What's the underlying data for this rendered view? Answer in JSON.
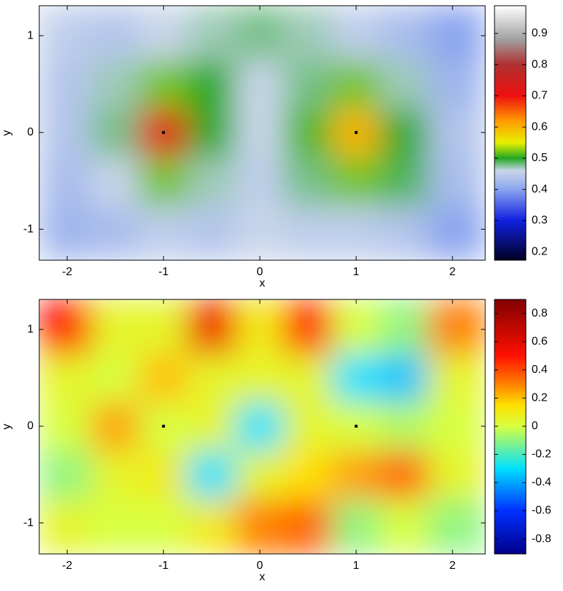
{
  "chart_data": [
    {
      "type": "heatmap",
      "x": [
        -2,
        -1.5,
        -1,
        -0.5,
        0,
        0.5,
        1,
        1.5,
        2
      ],
      "y": [
        -1,
        -0.5,
        0,
        0.5,
        1
      ],
      "z": [
        [
          0.42,
          0.43,
          0.45,
          0.44,
          0.46,
          0.45,
          0.45,
          0.44,
          0.4
        ],
        [
          0.43,
          0.46,
          0.52,
          0.47,
          0.45,
          0.48,
          0.52,
          0.49,
          0.43
        ],
        [
          0.44,
          0.48,
          0.72,
          0.5,
          0.46,
          0.51,
          0.6,
          0.5,
          0.44
        ],
        [
          0.44,
          0.47,
          0.52,
          0.5,
          0.46,
          0.48,
          0.52,
          0.47,
          0.42
        ],
        [
          0.45,
          0.44,
          0.46,
          0.47,
          0.48,
          0.47,
          0.45,
          0.43,
          0.4
        ]
      ],
      "xlim": [
        -2.29,
        2.34
      ],
      "ylim": [
        -1.32,
        1.31
      ],
      "xticks": [
        -2,
        -1,
        0,
        1,
        2
      ],
      "yticks": [
        -1,
        0,
        1
      ],
      "xlabel": "x",
      "ylabel": "y",
      "points": {
        "x": [
          -1,
          1
        ],
        "y": [
          0,
          0
        ]
      },
      "colorbar": {
        "lim": [
          0.173,
          0.989
        ],
        "ticks": [
          0.2,
          0.3,
          0.4,
          0.5,
          0.6,
          0.7,
          0.8,
          0.9
        ],
        "colormap": [
          [
            0.15,
            "#000022"
          ],
          [
            0.3,
            "#1020e0"
          ],
          [
            0.4,
            "#8aa4ee"
          ],
          [
            0.46,
            "#c8d6ea"
          ],
          [
            0.5,
            "#22a822"
          ],
          [
            0.55,
            "#e8f000"
          ],
          [
            0.62,
            "#ff9a00"
          ],
          [
            0.7,
            "#ee1010"
          ],
          [
            0.8,
            "#b03030"
          ],
          [
            0.88,
            "#a0a0a0"
          ],
          [
            1.0,
            "#ffffff"
          ]
        ]
      }
    },
    {
      "type": "heatmap",
      "x": [
        -2,
        -1.5,
        -1,
        -0.5,
        0,
        0.5,
        1,
        1.5,
        2
      ],
      "y": [
        -1,
        -0.5,
        0,
        0.5,
        1
      ],
      "z": [
        [
          0.05,
          0.0,
          0.0,
          0.1,
          0.3,
          0.35,
          -0.1,
          0.0,
          -0.1
        ],
        [
          -0.1,
          0.05,
          0.1,
          -0.3,
          0.05,
          0.15,
          0.25,
          0.35,
          0.05
        ],
        [
          0.0,
          0.25,
          0.0,
          0.05,
          -0.3,
          0.05,
          0.0,
          -0.05,
          0.0
        ],
        [
          0.05,
          0.0,
          0.2,
          0.05,
          0.05,
          0.05,
          -0.3,
          -0.35,
          0.05
        ],
        [
          0.5,
          0.05,
          0.05,
          0.55,
          0.1,
          0.5,
          0.0,
          -0.1,
          0.3
        ]
      ],
      "xlim": [
        -2.29,
        2.34
      ],
      "ylim": [
        -1.32,
        1.31
      ],
      "xticks": [
        -2,
        -1,
        0,
        1,
        2
      ],
      "yticks": [
        -1,
        0,
        1
      ],
      "xlabel": "x",
      "ylabel": "y",
      "points": {
        "x": [
          -1,
          1
        ],
        "y": [
          0,
          0
        ]
      },
      "colorbar": {
        "lim": [
          -0.906,
          0.9
        ],
        "ticks": [
          -0.8,
          -0.6,
          -0.4,
          -0.2,
          0,
          0.2,
          0.4,
          0.6,
          0.8
        ],
        "colormap": [
          [
            -0.9,
            "#00008b"
          ],
          [
            -0.6,
            "#0030ff"
          ],
          [
            -0.3,
            "#00e0ff"
          ],
          [
            0.0,
            "#d8ff40"
          ],
          [
            0.15,
            "#ffe000"
          ],
          [
            0.3,
            "#ff8000"
          ],
          [
            0.5,
            "#ff1000"
          ],
          [
            0.9,
            "#800000"
          ]
        ]
      }
    }
  ]
}
